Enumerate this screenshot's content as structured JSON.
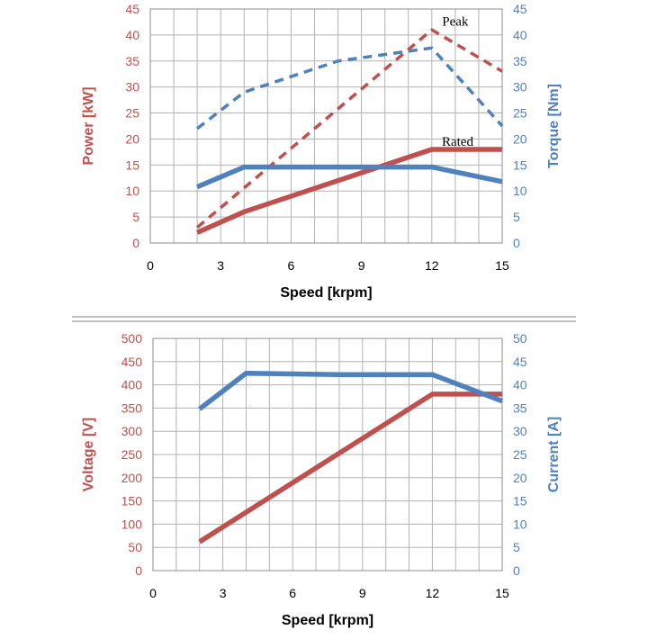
{
  "colors": {
    "red": "#c0504d",
    "blue": "#4f81bd",
    "grid": "#b3b3b3",
    "divider": "#9a9a9a"
  },
  "chart_data": [
    {
      "type": "line",
      "xlabel": "Speed [krpm]",
      "ylabel_left": "Power [kW]",
      "ylabel_right": "Torque [Nm]",
      "xlim": [
        0,
        15
      ],
      "ylim_left": [
        0,
        45
      ],
      "ylim_right": [
        0,
        45
      ],
      "x_ticks": [
        "0",
        "3",
        "6",
        "9",
        "12",
        "15"
      ],
      "y_left_ticks": [
        "0",
        "5",
        "10",
        "15",
        "20",
        "25",
        "30",
        "35",
        "40",
        "45"
      ],
      "y_right_ticks": [
        "0",
        "5",
        "10",
        "15",
        "20",
        "25",
        "30",
        "35",
        "40",
        "45"
      ],
      "grid": true,
      "annotations": [
        {
          "text": "Peak",
          "x": 13.0,
          "y": 42.7
        },
        {
          "text": "Rated",
          "x": 13.1,
          "y": 19.6
        }
      ],
      "series": [
        {
          "axis": "left",
          "color": "red",
          "style": "solid",
          "x": [
            2,
            4,
            12,
            15
          ],
          "values": [
            2,
            6,
            18,
            18
          ]
        },
        {
          "axis": "left",
          "color": "red",
          "style": "dashed",
          "x": [
            2,
            12,
            15
          ],
          "values": [
            3,
            41,
            33
          ]
        },
        {
          "axis": "right",
          "color": "blue",
          "style": "solid",
          "x": [
            2,
            4,
            12,
            15
          ],
          "values": [
            10.8,
            14.6,
            14.6,
            11.8
          ]
        },
        {
          "axis": "right",
          "color": "blue",
          "style": "dashed",
          "x": [
            2,
            4,
            8,
            12,
            15
          ],
          "values": [
            22,
            29,
            35,
            37.5,
            22.5
          ]
        }
      ]
    },
    {
      "type": "line",
      "xlabel": "Speed [krpm]",
      "ylabel_left": "Voltage [V]",
      "ylabel_right": "Current [A]",
      "xlim": [
        0,
        15
      ],
      "ylim_left": [
        0,
        500
      ],
      "ylim_right": [
        0,
        50
      ],
      "x_ticks": [
        "0",
        "3",
        "6",
        "9",
        "12",
        "15"
      ],
      "y_left_ticks": [
        "0",
        "50",
        "100",
        "150",
        "200",
        "250",
        "300",
        "350",
        "400",
        "450",
        "500"
      ],
      "y_right_ticks": [
        "0",
        "5",
        "10",
        "15",
        "20",
        "25",
        "30",
        "35",
        "40",
        "45",
        "50"
      ],
      "grid": true,
      "annotations": [],
      "series": [
        {
          "axis": "left",
          "color": "red",
          "style": "solid",
          "x": [
            2,
            12,
            15
          ],
          "values": [
            62,
            380,
            380
          ]
        },
        {
          "axis": "right",
          "color": "blue",
          "style": "solid",
          "x": [
            2,
            4,
            8,
            12,
            15
          ],
          "values": [
            34.8,
            42.5,
            42.2,
            42.2,
            36.5
          ]
        }
      ]
    }
  ]
}
